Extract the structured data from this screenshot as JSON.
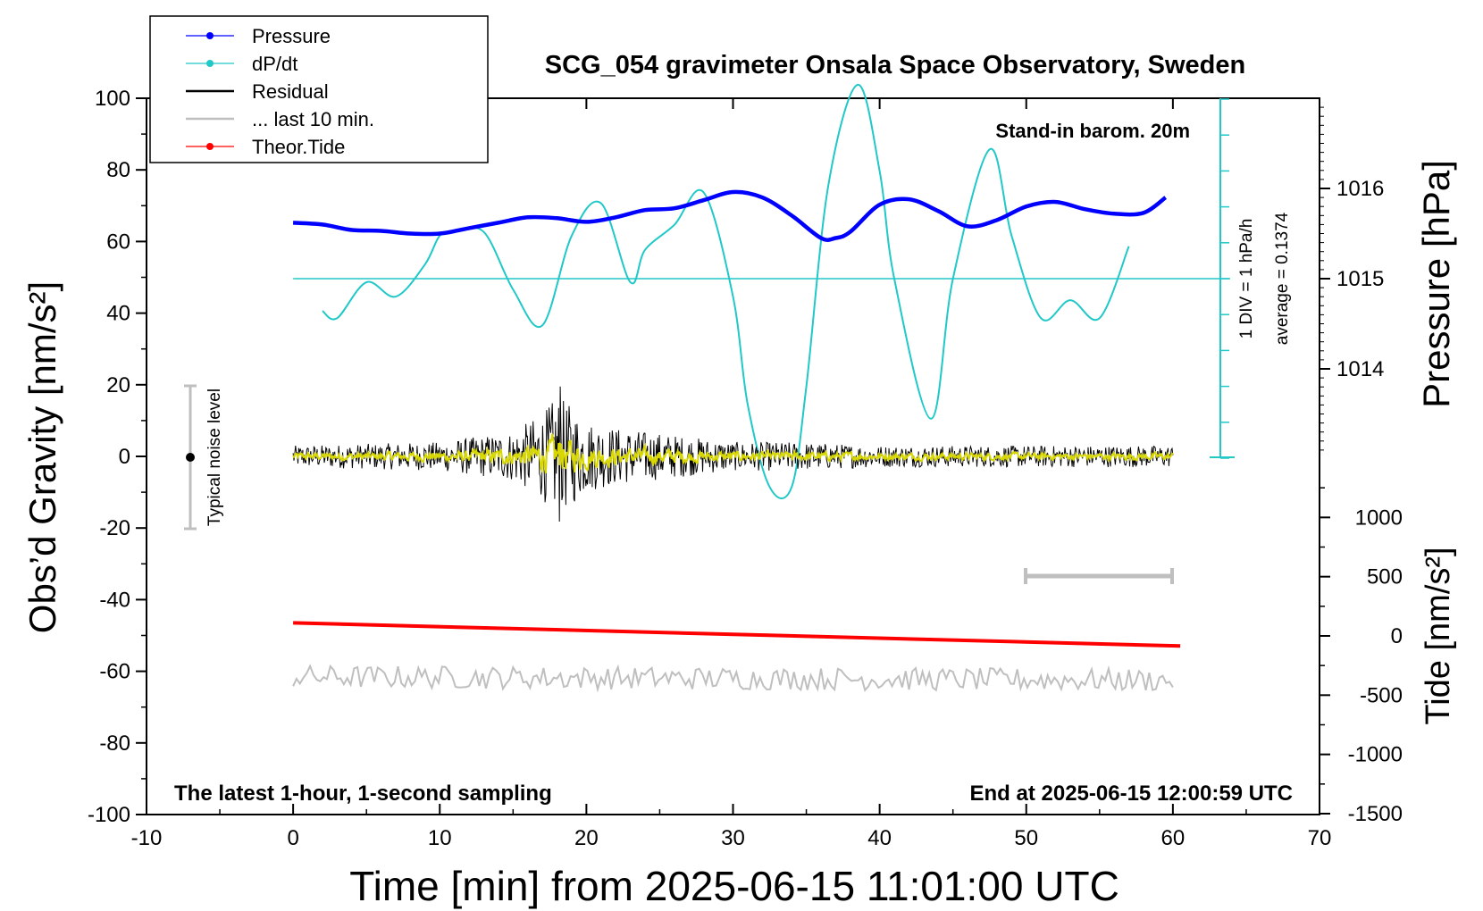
{
  "chart_data": {
    "type": "line",
    "title": "SCG_054 gravimeter Onsala Space Observatory, Sweden",
    "xlabel": "Time [min] from 2025-06-15 11:01:00 UTC",
    "ylabel_left": "Obs’d Gravity [nm/s²]",
    "ylabel_right_top": "Pressure [hPa]",
    "ylabel_right_bottom": "Tide [nm/s²]",
    "xlim": [
      -10,
      70
    ],
    "ylim_left": [
      -100,
      100
    ],
    "ylim_pressure": [
      1013,
      1017
    ],
    "ylim_tide": [
      -1500,
      1500
    ],
    "x_ticks": [
      "-10",
      "0",
      "10",
      "20",
      "30",
      "40",
      "50",
      "60",
      "70"
    ],
    "y_ticks_left": [
      "100",
      "80",
      "60",
      "40",
      "20",
      "0",
      "-20",
      "-40",
      "-60",
      "-80",
      "-100"
    ],
    "pressure_ticks": [
      "1016",
      "1015",
      "1014"
    ],
    "tide_ticks": [
      "1000",
      "500",
      "0",
      "-500",
      "-1000",
      "-1500"
    ],
    "legend": {
      "placement": "top-left",
      "entries": [
        {
          "label": "Pressure",
          "color": "#0000ff"
        },
        {
          "label": "dP/dt",
          "color": "#20c8c8"
        },
        {
          "label": "Residual",
          "color": "#000000"
        },
        {
          "label": "... last 10 min.",
          "color": "#bfbfbf"
        },
        {
          "label": "Theor.Tide",
          "color": "#ff0000"
        }
      ]
    },
    "annotations": {
      "stand_in": "Stand-in barom. 20m",
      "div_label": "1 DIV = 1 hPa/h",
      "average_label": "average = 0.1374",
      "noise_label": "Typical noise level",
      "bottom_left": "The latest 1-hour, 1-second sampling",
      "bottom_right": "End at 2025-06-15 12:00:59 UTC"
    },
    "series": [
      {
        "name": "Pressure",
        "color": "#0000ff",
        "unit": "hPa",
        "x": [
          0,
          2,
          4,
          6,
          8,
          10,
          12,
          14,
          16,
          18,
          20,
          22,
          24,
          26,
          28,
          30,
          32,
          34,
          36,
          37,
          38,
          40,
          42,
          44,
          46,
          48,
          50,
          52,
          54,
          56,
          58,
          59.5
        ],
        "values": [
          1015.62,
          1015.6,
          1015.54,
          1015.53,
          1015.5,
          1015.5,
          1015.56,
          1015.62,
          1015.68,
          1015.67,
          1015.63,
          1015.68,
          1015.76,
          1015.78,
          1015.87,
          1015.96,
          1015.9,
          1015.7,
          1015.45,
          1015.45,
          1015.52,
          1015.82,
          1015.88,
          1015.75,
          1015.58,
          1015.65,
          1015.8,
          1015.85,
          1015.77,
          1015.72,
          1015.73,
          1015.9
        ]
      },
      {
        "name": "dP/dt",
        "color": "#20c8c8",
        "unit": "hPa/h (1 DIV = 1 hPa/h, baseline = 0.1374)",
        "x": [
          2,
          3,
          5,
          7,
          9,
          10,
          11,
          13,
          15,
          17,
          19,
          21,
          23,
          24,
          26,
          28,
          30,
          31,
          32.5,
          34,
          35,
          36.5,
          38.5,
          40,
          41,
          43.5,
          45,
          47.5,
          49,
          51,
          53,
          55,
          57
        ],
        "values": [
          -0.9,
          -1.1,
          -0.1,
          -0.5,
          0.4,
          1.2,
          1.3,
          1.3,
          -0.3,
          -1.3,
          1.2,
          2.1,
          -0.1,
          0.8,
          1.5,
          2.4,
          -0.5,
          -3.5,
          -5.8,
          -5.8,
          -3.0,
          2.6,
          5.4,
          3.0,
          0.0,
          -3.9,
          0.0,
          3.6,
          1.2,
          -1.1,
          -0.6,
          -1.1,
          0.9
        ]
      },
      {
        "name": "Residual",
        "color": "#000000",
        "unit": "nm/s²",
        "amplitude_envelope": {
          "x": [
            0,
            10,
            15,
            17,
            18,
            19,
            20,
            22,
            26,
            30,
            34,
            40,
            50,
            60
          ],
          "values": [
            3,
            4,
            7,
            12,
            17,
            14,
            10,
            8,
            6,
            4,
            4,
            3,
            3,
            3
          ]
        },
        "extremes": {
          "max": 19.5,
          "min": -18.2,
          "at_x": 18.2
        }
      },
      {
        "name": "... last 10 min.",
        "color": "#bfbfbf",
        "unit": "nm/s²",
        "x": [
          0,
          60
        ],
        "values": [
          -61.5,
          -62.5
        ]
      },
      {
        "name": "Theor.Tide",
        "color": "#ff0000",
        "unit": "nm/s²",
        "x": [
          0,
          60.5
        ],
        "values": [
          110,
          -85
        ]
      }
    ]
  }
}
